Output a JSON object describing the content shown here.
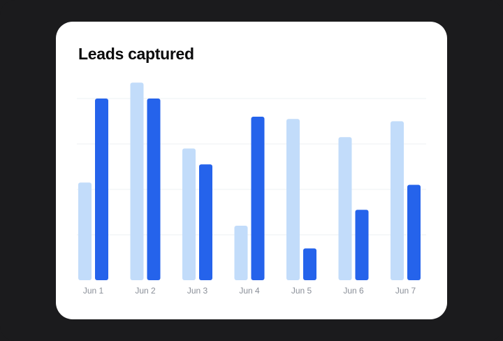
{
  "chart_data": {
    "type": "bar",
    "title": "Leads captured",
    "categories": [
      "Jun 1",
      "Jun 2",
      "Jun 3",
      "Jun 4",
      "Jun 5",
      "Jun 6",
      "Jun 7"
    ],
    "series": [
      {
        "values": [
          43,
          87,
          58,
          24,
          71,
          63,
          70
        ],
        "color": "#c2dcfa"
      },
      {
        "values": [
          80,
          80,
          51,
          72,
          14,
          31,
          42
        ],
        "color": "#2563eb"
      }
    ],
    "ylim": [
      0,
      100
    ],
    "grid": true,
    "legend": "none",
    "gridline_values": [
      20,
      40,
      60,
      80
    ]
  }
}
